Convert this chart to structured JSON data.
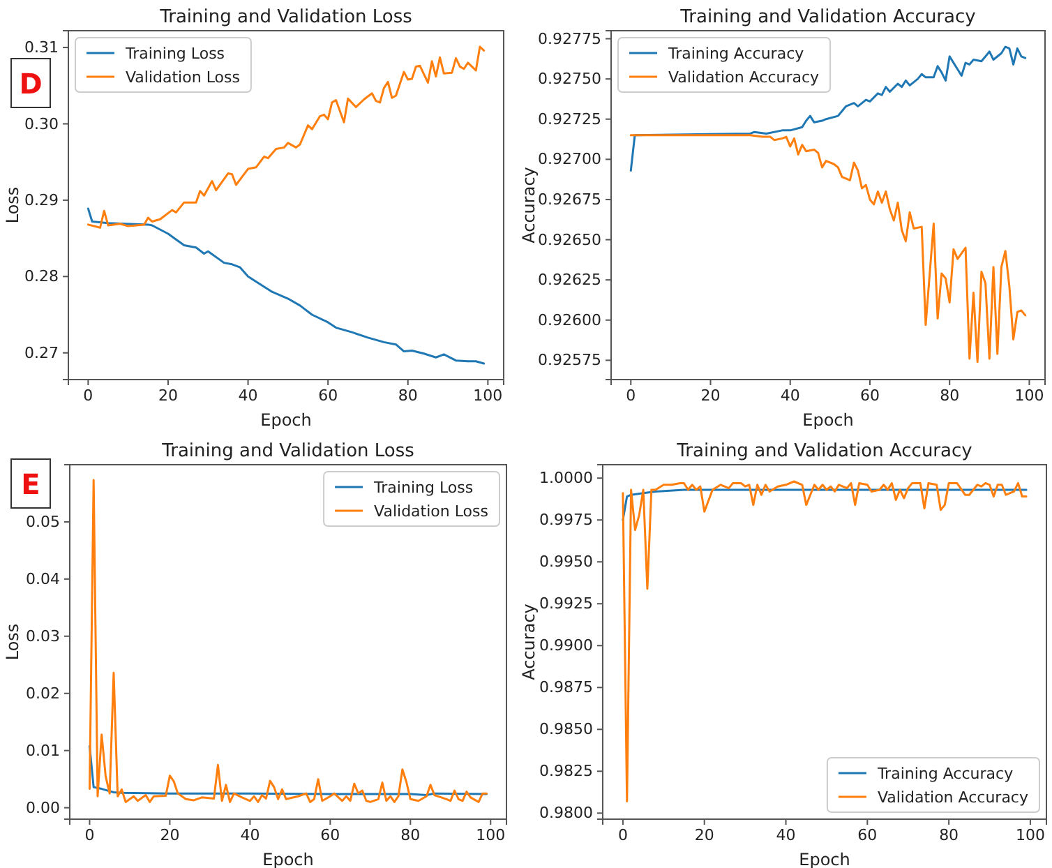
{
  "chart_data": [
    {
      "type": "line",
      "title": "Training and Validation Loss",
      "xlabel": "Epoch",
      "ylabel": "Loss",
      "annotations": [
        "D"
      ],
      "legend": "top left",
      "xlim": [
        -4.95,
        103.95
      ],
      "xticks": [
        0,
        20,
        40,
        60,
        80,
        100
      ],
      "ylim": [
        0.2665,
        0.3122
      ],
      "yticks": [
        0.27,
        0.28,
        0.29,
        {
          "value": 0.3,
          "label": "0.30"
        },
        0.31
      ],
      "series": [
        {
          "name": "Training Loss",
          "color": "#1f77b4",
          "x": [
            0,
            1,
            5,
            15,
            16,
            20,
            24,
            27,
            29,
            30,
            34,
            36,
            38,
            40,
            43,
            46,
            50,
            53,
            56,
            60,
            62,
            66,
            70,
            74,
            77,
            79,
            81,
            84,
            87,
            89,
            92,
            95,
            97,
            99
          ],
          "values": [
            0.2889,
            0.2872,
            0.287,
            0.2868,
            0.2867,
            0.2856,
            0.2841,
            0.2838,
            0.283,
            0.2833,
            0.2818,
            0.2816,
            0.2812,
            0.28,
            0.279,
            0.278,
            0.2771,
            0.2762,
            0.275,
            0.274,
            0.2733,
            0.2727,
            0.272,
            0.2714,
            0.2711,
            0.2702,
            0.2703,
            0.2699,
            0.2694,
            0.2698,
            0.269,
            0.2689,
            0.2689,
            0.2686
          ]
        },
        {
          "name": "Validation Loss",
          "color": "#ff7f0e",
          "x": [
            0,
            3,
            4,
            5,
            8,
            10,
            14,
            15,
            16,
            18,
            21,
            22,
            24,
            27,
            28,
            29,
            31,
            32,
            35,
            36,
            37,
            40,
            42,
            44,
            45,
            47,
            49,
            50,
            52,
            53,
            55,
            56,
            58,
            59,
            60,
            61,
            62,
            64,
            65,
            67,
            69,
            71,
            72,
            73,
            74,
            75,
            76,
            77,
            79,
            80,
            81,
            82,
            83,
            85,
            86,
            87,
            88,
            89,
            91,
            92,
            93,
            94,
            95,
            97,
            98,
            99
          ],
          "values": [
            0.2868,
            0.2864,
            0.2886,
            0.2867,
            0.2869,
            0.2866,
            0.2868,
            0.2877,
            0.2872,
            0.2875,
            0.2887,
            0.2884,
            0.2897,
            0.2897,
            0.2912,
            0.2906,
            0.2925,
            0.2913,
            0.2935,
            0.2934,
            0.292,
            0.2941,
            0.2943,
            0.2957,
            0.2955,
            0.2967,
            0.2969,
            0.2975,
            0.2969,
            0.2973,
            0.2998,
            0.2993,
            0.301,
            0.3012,
            0.3006,
            0.3028,
            0.3031,
            0.3002,
            0.3033,
            0.3022,
            0.3032,
            0.304,
            0.303,
            0.3028,
            0.3047,
            0.3055,
            0.3034,
            0.3037,
            0.3068,
            0.3058,
            0.3059,
            0.3075,
            0.3076,
            0.3054,
            0.3082,
            0.3062,
            0.3087,
            0.3066,
            0.3067,
            0.3086,
            0.3075,
            0.3072,
            0.308,
            0.307,
            0.3101,
            0.3096
          ]
        }
      ]
    },
    {
      "type": "line",
      "title": "Training and Validation Accuracy",
      "xlabel": "Epoch",
      "ylabel": "Accuracy",
      "legend": "top left",
      "xlim": [
        -4.95,
        103.95
      ],
      "xticks": [
        0,
        20,
        40,
        60,
        80,
        100
      ],
      "ylim": [
        0.92563,
        0.9278
      ],
      "yticks": [
        0.92575,
        {
          "value": 0.926,
          "label": "0.92600"
        },
        0.92625,
        {
          "value": 0.9265,
          "label": "0.92650"
        },
        0.92675,
        {
          "value": 0.927,
          "label": "0.92700"
        },
        0.92725,
        {
          "value": 0.9275,
          "label": "0.92750"
        },
        0.92775
      ],
      "series": [
        {
          "name": "Training Accuracy",
          "color": "#1f77b4",
          "x": [
            0,
            1,
            30,
            31,
            34,
            38,
            40,
            43,
            44,
            45,
            46,
            48,
            49,
            52,
            53,
            54,
            56,
            57,
            59,
            60,
            62,
            63,
            64,
            65,
            67,
            68,
            69,
            70,
            72,
            73,
            74,
            76,
            77,
            78,
            79,
            80,
            82,
            83,
            84,
            85,
            86,
            88,
            90,
            91,
            93,
            94,
            95,
            96,
            97,
            98,
            99
          ],
          "values": [
            0.92693,
            0.92715,
            0.92716,
            0.92717,
            0.92716,
            0.92718,
            0.92718,
            0.9272,
            0.92724,
            0.92727,
            0.92723,
            0.92724,
            0.92725,
            0.92727,
            0.9273,
            0.92733,
            0.92735,
            0.92733,
            0.92737,
            0.92736,
            0.92741,
            0.9274,
            0.92745,
            0.92742,
            0.92747,
            0.92745,
            0.92749,
            0.92746,
            0.9275,
            0.92753,
            0.92751,
            0.92751,
            0.92758,
            0.92754,
            0.92749,
            0.92764,
            0.92756,
            0.92752,
            0.9276,
            0.92759,
            0.92762,
            0.92761,
            0.92767,
            0.92762,
            0.92766,
            0.9277,
            0.92769,
            0.92759,
            0.92769,
            0.92764,
            0.92763
          ]
        },
        {
          "name": "Validation Accuracy",
          "color": "#ff7f0e",
          "x": [
            0,
            30,
            33,
            35,
            36,
            38,
            39,
            40,
            41,
            42,
            43,
            44,
            46,
            47,
            48,
            49,
            51,
            52,
            53,
            54,
            55,
            56,
            57,
            58,
            59,
            60,
            61,
            62,
            63,
            64,
            65,
            66,
            67,
            68,
            69,
            70,
            71,
            73,
            74,
            76,
            77,
            78,
            79,
            80,
            81,
            82,
            84,
            85,
            86,
            87,
            88,
            89,
            90,
            91,
            92,
            93,
            94,
            95,
            96,
            97,
            98,
            99
          ],
          "values": [
            0.92715,
            0.92715,
            0.92714,
            0.92714,
            0.92712,
            0.92713,
            0.92714,
            0.92708,
            0.92713,
            0.92703,
            0.92709,
            0.92705,
            0.92706,
            0.92704,
            0.92695,
            0.92699,
            0.92697,
            0.92695,
            0.92689,
            0.92688,
            0.92687,
            0.92698,
            0.92693,
            0.92682,
            0.92684,
            0.92675,
            0.92672,
            0.9268,
            0.92673,
            0.9268,
            0.92669,
            0.92662,
            0.92673,
            0.92656,
            0.92649,
            0.92667,
            0.92657,
            0.92658,
            0.92597,
            0.9266,
            0.92601,
            0.92629,
            0.92626,
            0.92611,
            0.92644,
            0.92638,
            0.92645,
            0.92576,
            0.92617,
            0.92574,
            0.9263,
            0.92623,
            0.92576,
            0.92633,
            0.92579,
            0.92633,
            0.92643,
            0.92621,
            0.92588,
            0.92605,
            0.92606,
            0.92603
          ]
        }
      ]
    },
    {
      "type": "line",
      "title": "Training and Validation Loss",
      "xlabel": "Epoch",
      "ylabel": "Loss",
      "annotations": [
        "E"
      ],
      "legend": "top right",
      "xlim": [
        -4.95,
        103.95
      ],
      "xticks": [
        0,
        20,
        40,
        60,
        80,
        100
      ],
      "ylim": [
        -0.002,
        0.06
      ],
      "yticks": [
        {
          "value": 0,
          "label": "0.00"
        },
        0.01,
        0.02,
        0.03,
        0.04,
        0.05
      ],
      "series": [
        {
          "name": "Training Loss",
          "color": "#1f77b4",
          "x": [
            0,
            1,
            3,
            5,
            6,
            8,
            20,
            40,
            60,
            80,
            84,
            86,
            99
          ],
          "values": [
            0.0108,
            0.0036,
            0.0033,
            0.0029,
            0.0027,
            0.0026,
            0.0025,
            0.0025,
            0.0024,
            0.0024,
            0.0022,
            0.0025,
            0.0024
          ]
        },
        {
          "name": "Validation Loss",
          "color": "#ff7f0e",
          "x": [
            0,
            1,
            2,
            3,
            4,
            5,
            6,
            7,
            8,
            9,
            11,
            12,
            14,
            15,
            16,
            19,
            20,
            21,
            22,
            24,
            26,
            28,
            31,
            32,
            33,
            34,
            35,
            36,
            38,
            40,
            41,
            42,
            43,
            44,
            45,
            46,
            47,
            48,
            49,
            52,
            54,
            55,
            56,
            57,
            58,
            60,
            61,
            63,
            64,
            65,
            66,
            67,
            68,
            69,
            70,
            72,
            73,
            74,
            75,
            76,
            77,
            78,
            79,
            80,
            82,
            84,
            85,
            86,
            89,
            90,
            91,
            92,
            93,
            94,
            95,
            97,
            98,
            99
          ],
          "values": [
            0.0033,
            0.0573,
            0.002,
            0.0128,
            0.0055,
            0.0025,
            0.0236,
            0.002,
            0.0032,
            0.001,
            0.002,
            0.0012,
            0.0022,
            0.001,
            0.002,
            0.0021,
            0.0056,
            0.0046,
            0.0025,
            0.0015,
            0.0013,
            0.0018,
            0.0016,
            0.0075,
            0.0012,
            0.004,
            0.001,
            0.0025,
            0.0018,
            0.0012,
            0.002,
            0.001,
            0.0022,
            0.0016,
            0.0047,
            0.0036,
            0.0015,
            0.0032,
            0.0015,
            0.002,
            0.0025,
            0.001,
            0.0015,
            0.005,
            0.0012,
            0.002,
            0.0025,
            0.0012,
            0.002,
            0.0012,
            0.0042,
            0.0025,
            0.003,
            0.0012,
            0.001,
            0.0015,
            0.0044,
            0.0012,
            0.002,
            0.001,
            0.002,
            0.0067,
            0.0045,
            0.0015,
            0.0012,
            0.002,
            0.004,
            0.0022,
            0.0015,
            0.0012,
            0.003,
            0.0015,
            0.0012,
            0.0028,
            0.0018,
            0.001,
            0.0025,
            0.0025
          ]
        }
      ]
    },
    {
      "type": "line",
      "title": "Training and Validation Accuracy",
      "xlabel": "Epoch",
      "ylabel": "Accuracy",
      "legend": "bottom right",
      "xlim": [
        -4.95,
        103.95
      ],
      "xticks": [
        0,
        20,
        40,
        60,
        80,
        100
      ],
      "ylim": [
        0.97964,
        1.0008
      ],
      "yticks": [
        {
          "value": 0.98,
          "label": "0.9800"
        },
        0.9825,
        {
          "value": 0.985,
          "label": "0.9850"
        },
        0.9875,
        {
          "value": 0.99,
          "label": "0.9900"
        },
        0.9925,
        {
          "value": 0.995,
          "label": "0.9950"
        },
        0.9975,
        {
          "value": 1,
          "label": "1.0000"
        }
      ],
      "series": [
        {
          "name": "Training Accuracy",
          "color": "#1f77b4",
          "x": [
            0,
            1,
            2,
            5,
            8,
            15,
            99
          ],
          "values": [
            0.9975,
            0.9989,
            0.999,
            0.9991,
            0.9992,
            0.9993,
            0.9993
          ]
        },
        {
          "name": "Validation Accuracy",
          "color": "#ff7f0e",
          "x": [
            0,
            1,
            2,
            3,
            4,
            5,
            6,
            7,
            8,
            10,
            12,
            14,
            15,
            16,
            17,
            18,
            19,
            20,
            22,
            24,
            26,
            27,
            29,
            30,
            31,
            32,
            33,
            34,
            35,
            36,
            38,
            40,
            42,
            44,
            45,
            46,
            47,
            48,
            49,
            50,
            51,
            52,
            53,
            55,
            56,
            57,
            58,
            60,
            61,
            63,
            64,
            65,
            66,
            67,
            68,
            69,
            70,
            71,
            73,
            74,
            75,
            77,
            78,
            79,
            80,
            82,
            84,
            85,
            87,
            88,
            89,
            90,
            91,
            92,
            93,
            94,
            96,
            97,
            98,
            99
          ],
          "values": [
            0.9991,
            0.9807,
            0.9993,
            0.9969,
            0.9978,
            0.9993,
            0.9934,
            0.9993,
            0.9993,
            0.9996,
            0.9996,
            0.9997,
            0.9997,
            0.9993,
            0.9996,
            0.9993,
            0.9995,
            0.998,
            0.9993,
            0.9996,
            0.9994,
            0.9997,
            0.9997,
            0.9995,
            0.9996,
            0.9984,
            0.9996,
            0.999,
            0.9996,
            0.9992,
            0.9995,
            0.9996,
            0.9998,
            0.9996,
            0.9984,
            0.999,
            0.9996,
            0.9993,
            0.9996,
            0.9993,
            0.9995,
            0.9992,
            0.9996,
            0.9994,
            0.9997,
            0.9984,
            0.9997,
            0.9996,
            0.9992,
            0.9993,
            0.9996,
            0.9993,
            0.9997,
            0.9987,
            0.9993,
            0.9988,
            0.9994,
            0.9997,
            0.9997,
            0.9982,
            0.9997,
            0.9996,
            0.9981,
            0.9984,
            0.9997,
            0.9997,
            0.999,
            0.999,
            0.9996,
            0.9995,
            0.9997,
            0.9996,
            0.9989,
            0.9996,
            0.9996,
            0.999,
            0.9992,
            0.9997,
            0.9989,
            0.9989
          ]
        }
      ]
    }
  ]
}
